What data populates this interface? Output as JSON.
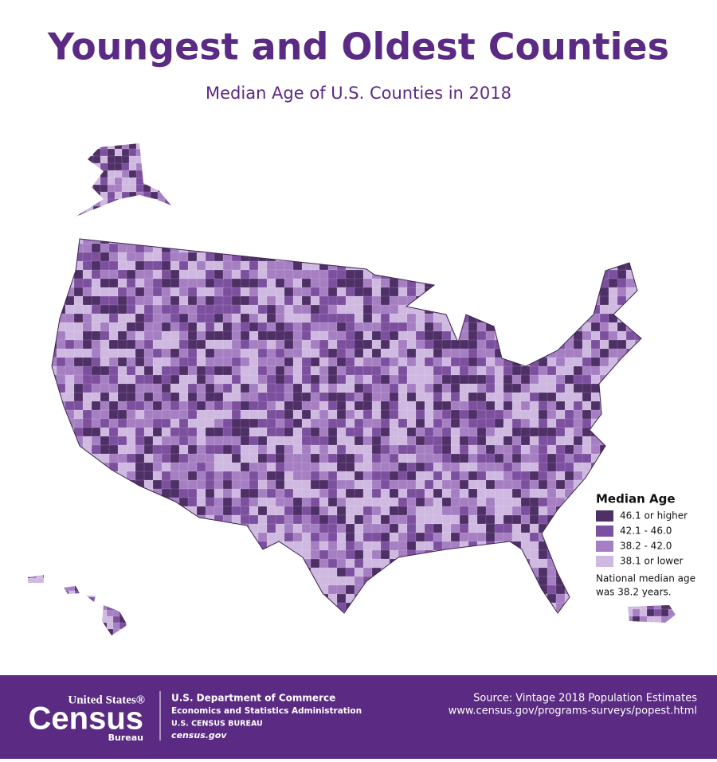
{
  "header": {
    "title": "Youngest and Oldest Counties",
    "subtitle": "Median Age of U.S. Counties in 2018"
  },
  "legend": {
    "title": "Median Age",
    "items": [
      {
        "label": "46.1 or higher",
        "color": "#4e2f66"
      },
      {
        "label": "42.1 - 46.0",
        "color": "#7c4f9f"
      },
      {
        "label": "38.2 - 42.0",
        "color": "#a67fc3"
      },
      {
        "label": "38.1 or lower",
        "color": "#cfb9e0"
      }
    ],
    "note": [
      "National median age",
      "was 38.2 years."
    ]
  },
  "footer": {
    "logo": {
      "top": "United States®",
      "main": "Census",
      "bottom": "Bureau"
    },
    "agency": [
      "U.S. Department of Commerce",
      "Economics and Statistics Administration",
      "U.S. CENSUS BUREAU",
      "census.gov"
    ],
    "source": "Source: Vintage 2018 Population Estimates",
    "url": "www.census.gov/programs-surveys/popest.html"
  }
}
